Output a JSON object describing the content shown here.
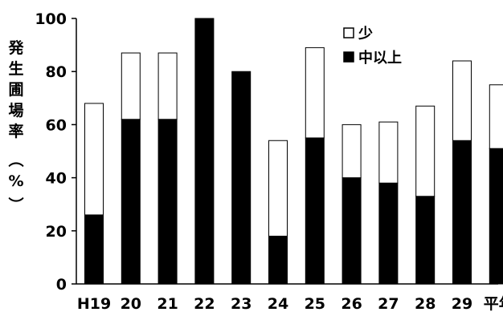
{
  "chart_data": {
    "type": "bar",
    "stacked": true,
    "categories": [
      "H19",
      "20",
      "21",
      "22",
      "23",
      "24",
      "25",
      "26",
      "27",
      "28",
      "29",
      "平年"
    ],
    "series": [
      {
        "name": "中以上",
        "color": "#000000",
        "values": [
          26,
          62,
          62,
          100,
          80,
          18,
          55,
          40,
          38,
          33,
          54,
          51
        ]
      },
      {
        "name": "少",
        "color": "#ffffff",
        "values": [
          42,
          25,
          25,
          0,
          0,
          36,
          34,
          20,
          23,
          34,
          30,
          24
        ]
      }
    ],
    "ylabel": [
      "発",
      "生",
      "圃",
      "場",
      "率",
      "（",
      "%",
      "）"
    ],
    "ylim": [
      0,
      100
    ],
    "yticks": [
      0,
      20,
      40,
      60,
      80,
      100
    ],
    "legend": {
      "position": "top-right",
      "order": [
        "少",
        "中以上"
      ]
    },
    "grid": false
  }
}
